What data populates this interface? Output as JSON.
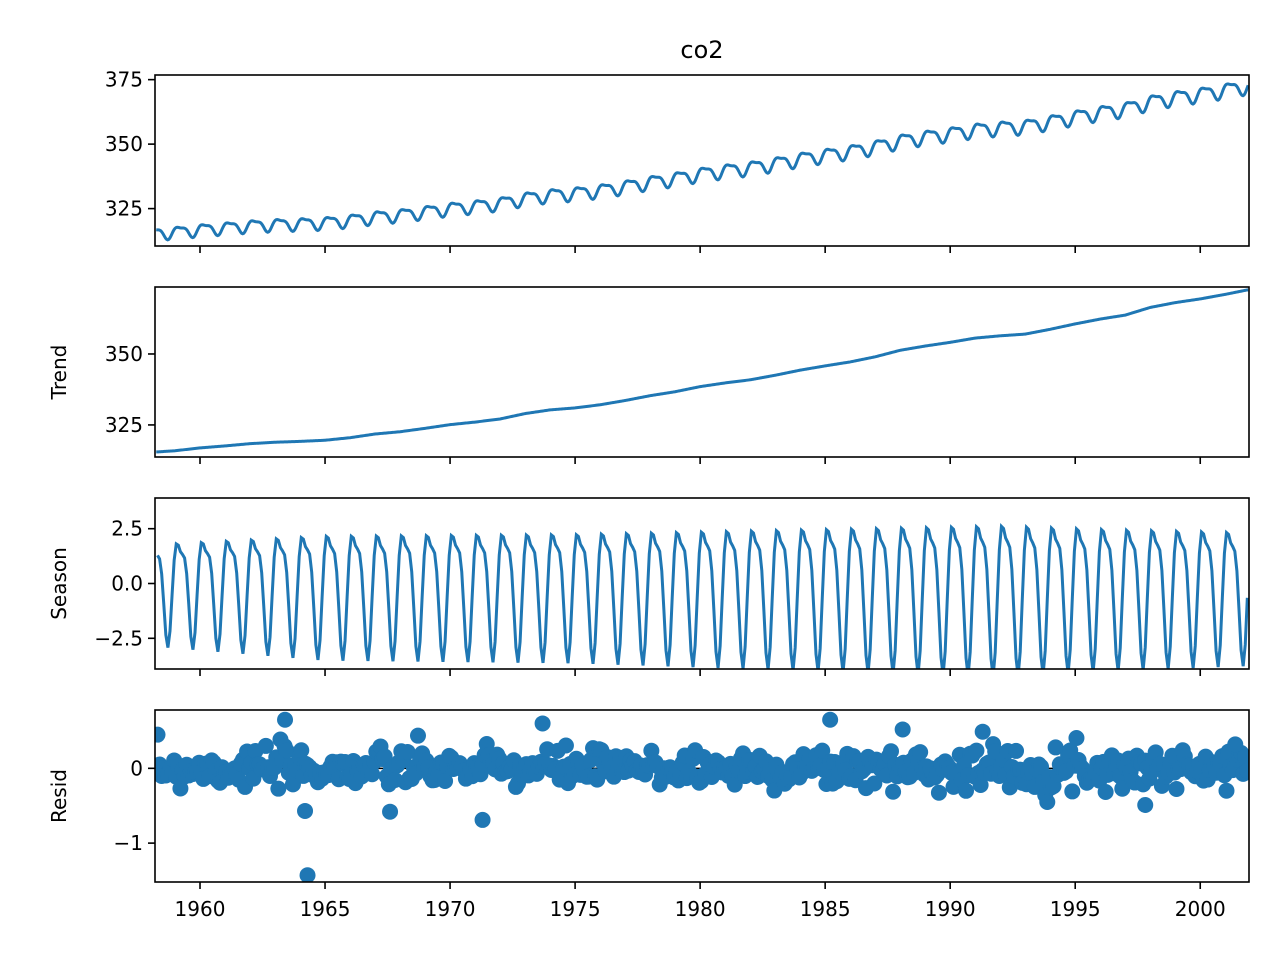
{
  "chart_data": [
    {
      "type": "line",
      "title": "co2",
      "xlabel": "",
      "ylabel": "",
      "xlim": [
        1958.2,
        2001.95
      ],
      "ylim": [
        310.5,
        376.8
      ],
      "yticks": [
        325,
        350,
        375
      ],
      "ytick_labels": [
        "325",
        "350",
        "375"
      ],
      "grid": false,
      "color": "#1f77b4",
      "series": [
        {
          "x": [
            1958.3,
            1959,
            1960,
            1961,
            1962,
            1963,
            1964,
            1965,
            1966,
            1967,
            1968,
            1969,
            1970,
            1971,
            1972,
            1973,
            1974,
            1975,
            1976,
            1977,
            1978,
            1979,
            1980,
            1981,
            1982,
            1983,
            1984,
            1985,
            1986,
            1987,
            1988,
            1989,
            1990,
            1991,
            1992,
            1993,
            1994,
            1995,
            1996,
            1997,
            1998,
            1999,
            2000,
            2001,
            2001.9
          ],
          "y": [
            315.5,
            315.9,
            316.9,
            317.6,
            318.4,
            318.9,
            319.2,
            319.6,
            320.5,
            321.8,
            322.6,
            323.8,
            325.1,
            326.0,
            327.1,
            329.0,
            330.3,
            331.0,
            332.1,
            333.6,
            335.3,
            336.7,
            338.5,
            339.8,
            340.9,
            342.5,
            344.3,
            345.8,
            347.2,
            349.0,
            351.3,
            352.8,
            354.1,
            355.6,
            356.4,
            357.0,
            358.7,
            360.6,
            362.3,
            363.7,
            366.4,
            368.1,
            369.4,
            371.0,
            372.6
          ],
          "seasonal_amplitude": 3.0
        }
      ]
    },
    {
      "type": "line",
      "title": "",
      "xlabel": "",
      "ylabel": "Trend",
      "xlim": [
        1958.2,
        2001.95
      ],
      "ylim": [
        313.7,
        373.6
      ],
      "yticks": [
        325,
        350
      ],
      "ytick_labels": [
        "325",
        "350"
      ],
      "grid": false,
      "color": "#1f77b4",
      "series": [
        {
          "x": [
            1958.3,
            1959,
            1960,
            1961,
            1962,
            1963,
            1964,
            1965,
            1966,
            1967,
            1968,
            1969,
            1970,
            1971,
            1972,
            1973,
            1974,
            1975,
            1976,
            1977,
            1978,
            1979,
            1980,
            1981,
            1982,
            1983,
            1984,
            1985,
            1986,
            1987,
            1988,
            1989,
            1990,
            1991,
            1992,
            1993,
            1994,
            1995,
            1996,
            1997,
            1998,
            1999,
            2000,
            2001,
            2001.9
          ],
          "y": [
            315.5,
            315.9,
            316.9,
            317.6,
            318.4,
            318.9,
            319.2,
            319.6,
            320.5,
            321.8,
            322.6,
            323.8,
            325.1,
            326.0,
            327.1,
            329.0,
            330.3,
            331.0,
            332.1,
            333.6,
            335.3,
            336.7,
            338.5,
            339.8,
            340.9,
            342.5,
            344.3,
            345.8,
            347.2,
            349.0,
            351.3,
            352.8,
            354.1,
            355.6,
            356.4,
            357.0,
            358.7,
            360.6,
            362.3,
            363.7,
            366.4,
            368.1,
            369.4,
            371.0,
            372.6
          ]
        }
      ]
    },
    {
      "type": "line",
      "title": "",
      "xlabel": "",
      "ylabel": "Season",
      "xlim": [
        1958.2,
        2001.95
      ],
      "ylim": [
        -3.9,
        3.9
      ],
      "yticks": [
        -2.5,
        0.0,
        2.5
      ],
      "ytick_labels": [
        "−2.5",
        "0.0",
        "2.5"
      ],
      "grid": false,
      "color": "#1f77b4",
      "series": [
        {
          "seasonal_period_years": 1,
          "x_start": 1958.3,
          "x_end": 2001.95,
          "amplitude_x": [
            1958.3,
            1965,
            1975,
            1985,
            1992,
            1996,
            2001.9
          ],
          "amplitude_y": [
            2.3,
            2.8,
            2.9,
            3.2,
            3.4,
            3.2,
            3.0
          ]
        }
      ]
    },
    {
      "type": "scatter",
      "title": "",
      "xlabel": "",
      "ylabel": "Resid",
      "xlim": [
        1958.2,
        2001.95
      ],
      "ylim": [
        -1.52,
        0.78
      ],
      "yticks": [
        -1,
        0
      ],
      "ytick_labels": [
        "−1",
        "0"
      ],
      "xticks": [
        1960,
        1965,
        1970,
        1975,
        1980,
        1985,
        1990,
        1995,
        2000
      ],
      "xtick_labels": [
        "1960",
        "1965",
        "1970",
        "1975",
        "1980",
        "1985",
        "1990",
        "1995",
        "2000"
      ],
      "grid": false,
      "color": "#1f77b4",
      "series": [
        {
          "monthly_from": 1958.3,
          "monthly_to": 2001.95,
          "spread": 0.22,
          "highlighted_points": [
            {
              "x": 1963.4,
              "y": 0.65
            },
            {
              "x": 1964.3,
              "y": -1.43
            },
            {
              "x": 1964.2,
              "y": -0.57
            },
            {
              "x": 1967.6,
              "y": -0.58
            },
            {
              "x": 1971.3,
              "y": -0.69
            },
            {
              "x": 1973.7,
              "y": 0.6
            },
            {
              "x": 1985.2,
              "y": 0.65
            },
            {
              "x": 1988.1,
              "y": 0.52
            },
            {
              "x": 1991.3,
              "y": 0.49
            },
            {
              "x": 1997.8,
              "y": -0.49
            },
            {
              "x": 2001.4,
              "y": 0.32
            }
          ]
        }
      ]
    }
  ]
}
